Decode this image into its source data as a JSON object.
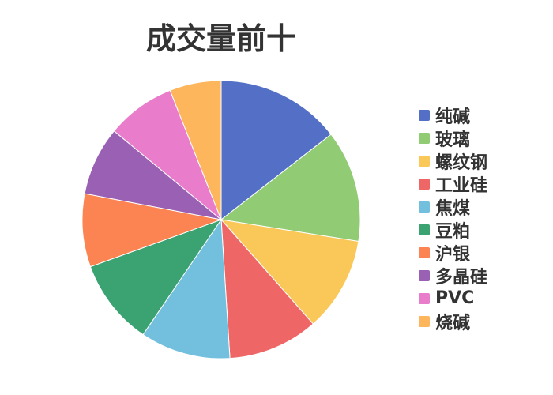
{
  "chart_data": {
    "type": "pie",
    "title": "成交量前十",
    "legend_position": "right",
    "slices": [
      {
        "label": "纯碱",
        "value": 14.5,
        "color": "#5470c6"
      },
      {
        "label": "玻璃",
        "value": 13.0,
        "color": "#91cc75"
      },
      {
        "label": "螺纹钢",
        "value": 11.0,
        "color": "#fac858"
      },
      {
        "label": "工业硅",
        "value": 10.5,
        "color": "#ee6666"
      },
      {
        "label": "焦煤",
        "value": 10.5,
        "color": "#73c0de"
      },
      {
        "label": "豆粕",
        "value": 10.0,
        "color": "#3ba272"
      },
      {
        "label": "沪银",
        "value": 8.5,
        "color": "#fc8452"
      },
      {
        "label": "多晶硅",
        "value": 8.0,
        "color": "#9a60b4"
      },
      {
        "label": "PVC",
        "value": 8.0,
        "color": "#ea7ccc"
      },
      {
        "label": "烧碱",
        "value": 6.0,
        "color": "#fdb65c"
      }
    ]
  }
}
